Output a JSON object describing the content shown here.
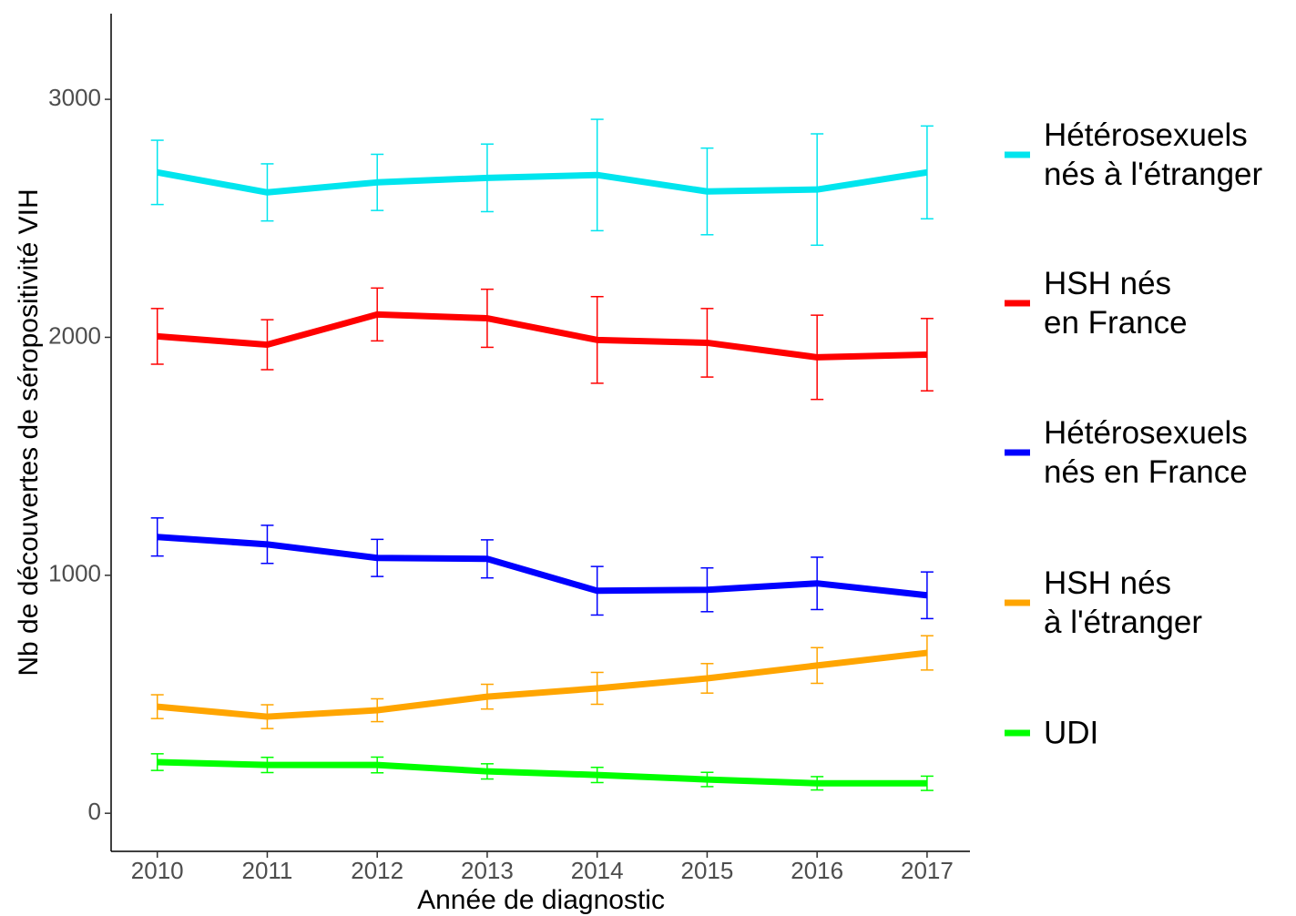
{
  "chart_data": {
    "type": "line",
    "x_label": "Année de diagnostic",
    "y_label": "Nb de découvertes de séropositivité VIH",
    "x": [
      2010,
      2011,
      2012,
      2013,
      2014,
      2015,
      2016,
      2017
    ],
    "xlim": [
      2009.58,
      2017.39
    ],
    "xticks": [
      2010,
      2011,
      2012,
      2013,
      2014,
      2015,
      2016,
      2017
    ],
    "ylim": [
      -160,
      3360
    ],
    "yticks": [
      0,
      1000,
      2000,
      3000
    ],
    "legend": "right",
    "series": [
      {
        "name": "Hétérosexuels\nnés à l'étranger",
        "color": "#00e5ee",
        "values": [
          2693,
          2609,
          2651,
          2670,
          2682,
          2613,
          2621,
          2693
        ],
        "errors": [
          135,
          120,
          118,
          142,
          234,
          182,
          234,
          195
        ]
      },
      {
        "name": "HSH nés\nen France",
        "color": "#ff0000",
        "values": [
          2004,
          1969,
          2096,
          2080,
          1989,
          1977,
          1916,
          1927
        ],
        "errors": [
          117,
          105,
          111,
          122,
          182,
          144,
          177,
          152
        ]
      },
      {
        "name": "Hétérosexuels\nnés en France",
        "color": "#0000ff",
        "values": [
          1161,
          1130,
          1073,
          1069,
          935,
          939,
          966,
          916
        ],
        "errors": [
          80,
          80,
          78,
          80,
          102,
          92,
          110,
          98
        ]
      },
      {
        "name": "HSH nés\nà l'étranger",
        "color": "#ffa500",
        "values": [
          448,
          406,
          433,
          490,
          525,
          567,
          621,
          674
        ],
        "errors": [
          50,
          50,
          48,
          52,
          67,
          62,
          75,
          72
        ]
      },
      {
        "name": "UDI",
        "color": "#00ff00",
        "values": [
          215,
          203,
          203,
          176,
          161,
          142,
          126,
          126
        ],
        "errors": [
          35,
          32,
          33,
          32,
          32,
          30,
          28,
          30
        ]
      }
    ]
  }
}
